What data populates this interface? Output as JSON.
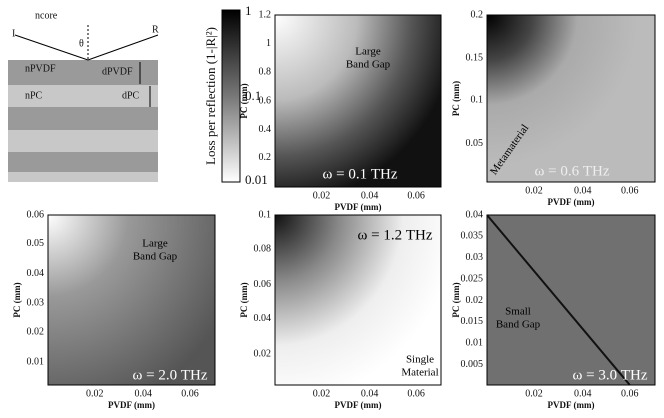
{
  "schematic": {
    "core": "ncore",
    "incident": "I",
    "angle": "θ",
    "reflected": "R",
    "n_pvdf": "nPVDF",
    "d_pvdf": "dPVDF",
    "n_pc": "nPC",
    "d_pc": "dPC"
  },
  "colorbar": {
    "label": "Loss per reflection (1-|R|²)",
    "ticks": [
      "1",
      "0.1",
      "0.01"
    ]
  },
  "panels": [
    {
      "title": "ω = 0.1 THz",
      "annotations": [
        "Large",
        "Band Gap"
      ],
      "xlabel": "PVDF (mm)",
      "ylabel": "PC (mm)",
      "xticks": [
        "0.02",
        "0.04",
        "0.06"
      ],
      "yticks": [
        "0.2",
        "0.4",
        "0.6",
        "0.8",
        "1",
        "1.2"
      ]
    },
    {
      "title": "ω = 0.6 THz",
      "annotations": [
        "Metamaterial"
      ],
      "xlabel": "PVDF (mm)",
      "ylabel": "PC (mm)",
      "xticks": [
        "0.02",
        "0.04",
        "0.06"
      ],
      "yticks": [
        "0.05",
        "0.1",
        "0.15",
        "0.2"
      ]
    },
    {
      "title": "ω = 2.0 THz",
      "annotations": [
        "Large",
        "Band Gap"
      ],
      "xlabel": "PVDF (mm)",
      "ylabel": "PC (mm)",
      "xticks": [
        "0.02",
        "0.04",
        "0.06"
      ],
      "yticks": [
        "0.01",
        "0.02",
        "0.03",
        "0.04",
        "0.05",
        "0.06"
      ]
    },
    {
      "title": "ω = 1.2 THz",
      "annotations": [
        "Single",
        "Material"
      ],
      "xlabel": "PVDF (mm)",
      "ylabel": "PC (mm)",
      "xticks": [
        "0.02",
        "0.04",
        "0.06"
      ],
      "yticks": [
        "0.02",
        "0.04",
        "0.06",
        "0.08",
        "0.1"
      ]
    },
    {
      "title": "ω = 3.0 THz",
      "annotations": [
        "Small",
        "Band Gap"
      ],
      "xlabel": "PVDF (mm)",
      "ylabel": "PC (mm)",
      "xticks": [
        "0.02",
        "0.04",
        "0.06"
      ],
      "yticks": [
        "0.005",
        "0.01",
        "0.015",
        "0.02",
        "0.025",
        "0.03",
        "0.035",
        "0.04"
      ]
    }
  ]
}
